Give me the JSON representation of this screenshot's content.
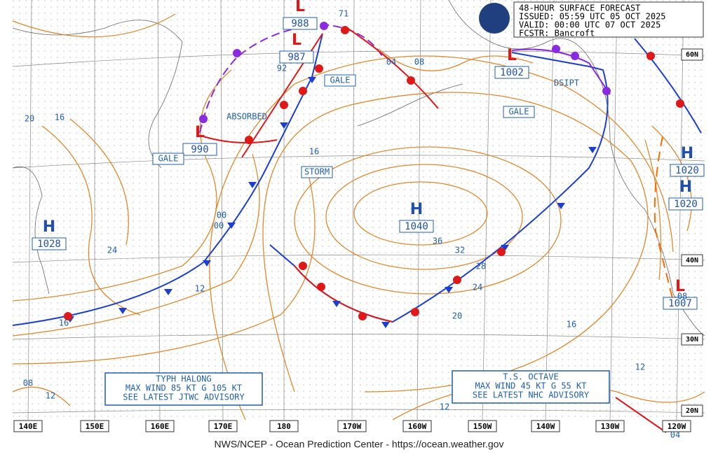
{
  "header": {
    "title": "48-HOUR SURFACE FORECAST",
    "issued": "ISSUED: 05:59 UTC 05 OCT 2025",
    "valid": "VALID:  00:00 UTC 07 OCT 2025",
    "fcstr": "FCSTR:  Bancroft"
  },
  "longitude_labels": [
    "140E",
    "150E",
    "160E",
    "170E",
    "180",
    "170W",
    "160W",
    "150W",
    "140W",
    "130W",
    "120W"
  ],
  "latitude_labels": [
    "60N",
    "40N",
    "30N",
    "20N"
  ],
  "systems": [
    {
      "symbol": "H",
      "pressure": "1040"
    },
    {
      "symbol": "H",
      "pressure": "1020"
    },
    {
      "symbol": "H",
      "pressure": "1020"
    },
    {
      "symbol": "H",
      "pressure": "1028"
    },
    {
      "symbol": "L",
      "pressure": "988"
    },
    {
      "symbol": "L",
      "pressure": "987"
    },
    {
      "symbol": "L",
      "pressure": "1002"
    },
    {
      "symbol": "L",
      "pressure": "1007"
    },
    {
      "symbol": "L",
      "pressure": "990"
    }
  ],
  "warnings": [
    "GALE",
    "GALE",
    "GALE",
    "STORM"
  ],
  "notes": [
    "ABSORBED",
    "DSIPT",
    "71"
  ],
  "isobar_labels": [
    "20",
    "16",
    "24",
    "12",
    "16",
    "36",
    "32",
    "28",
    "24",
    "20",
    "16",
    "12",
    "08",
    "12",
    "92",
    "04",
    "08",
    "00",
    "00",
    "16",
    "08",
    "12",
    "04"
  ],
  "advisories": [
    [
      "TYPH HALONG",
      "MAX WIND 85 KT G 105 KT",
      "SEE LATEST JTWC ADVISORY"
    ],
    [
      "T.S. OCTAVE",
      "MAX WIND 45 KT G 55 KT",
      "SEE LATEST NHC ADVISORY"
    ]
  ],
  "footer": "NWS/NCEP - Ocean Prediction Center - https://ocean.weather.gov"
}
